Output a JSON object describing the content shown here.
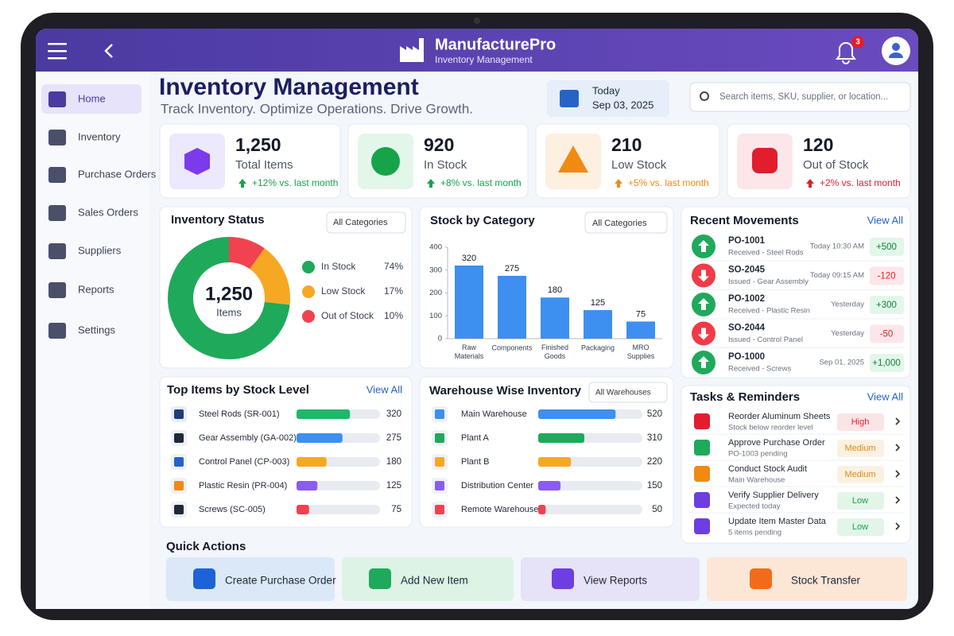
{
  "header": {
    "app_name": "ManufacturePro",
    "app_subtitle": "Inventory Management",
    "notification_count": 3
  },
  "sidebar": {
    "items": [
      "Home",
      "Inventory",
      "Purchase Orders",
      "Sales Orders",
      "Suppliers",
      "Reports",
      "Settings"
    ]
  },
  "page": {
    "title": "Inventory Management",
    "subtitle": "Track Inventory. Optimize Operations. Drive Growth.",
    "date_label": "Today",
    "date": "Sep 03, 2025",
    "search_placeholder": "Search items, SKU, supplier, or location..."
  },
  "kpis": [
    {
      "value": "1,250",
      "label": "Total Items",
      "change": "+12% vs. last month",
      "color": "#16a34a"
    },
    {
      "value": "920",
      "label": "In Stock",
      "change": "+8% vs. last month",
      "color": "#16a34a"
    },
    {
      "value": "210",
      "label": "Low Stock",
      "change": "+5% vs. last month",
      "color": "#f08a12"
    },
    {
      "value": "120",
      "label": "Out of Stock",
      "change": "+2% vs. last month",
      "color": "#e11d2e"
    }
  ],
  "inventory_status": {
    "title": "Inventory Status",
    "filter": "All Categories",
    "center_value": "1,250",
    "center_label": "Items",
    "chart": {
      "type": "donut",
      "categories": [
        "In Stock",
        "Low Stock",
        "Out of Stock"
      ],
      "values": [
        74,
        17,
        10
      ],
      "value_labels": [
        "74%",
        "17%",
        "10%"
      ],
      "colors": [
        "#1fa95b",
        "#f7a823",
        "#f2414f"
      ]
    }
  },
  "stock_by_category": {
    "title": "Stock by Category",
    "filter": "All Categories",
    "chart": {
      "type": "bar",
      "categories": [
        "Raw Materials",
        "Components",
        "Finished Goods",
        "Packaging",
        "MRO Supplies"
      ],
      "values": [
        320,
        275,
        180,
        125,
        75
      ],
      "ylim": [
        0,
        400
      ],
      "yticks": [
        0,
        100,
        200,
        300,
        400
      ],
      "color": "#3d8ff0"
    }
  },
  "recent_movements": {
    "title": "Recent Movements",
    "view_all": "View All",
    "items": [
      {
        "id": "PO-1001",
        "description": "Received - Steel Rods",
        "time": "Today 10:30 AM",
        "quantity": "+500",
        "direction": "in"
      },
      {
        "id": "SO-2045",
        "description": "Issued - Gear Assembly",
        "time": "Today 09:15 AM",
        "quantity": "-120",
        "direction": "out"
      },
      {
        "id": "PO-1002",
        "description": "Received - Plastic Resin",
        "time": "Yesterday",
        "quantity": "+300",
        "direction": "in"
      },
      {
        "id": "SO-2044",
        "description": "Issued - Control Panel",
        "time": "Yesterday",
        "quantity": "-50",
        "direction": "out"
      },
      {
        "id": "PO-1000",
        "description": "Received - Screws",
        "time": "Sep 01, 2025",
        "quantity": "+1,000",
        "direction": "in"
      }
    ]
  },
  "top_items": {
    "title": "Top Items by Stock Level",
    "view_all": "View All",
    "xlim": [
      0,
      500
    ],
    "items": [
      {
        "name": "Steel Rods (SR-001)",
        "value": 320,
        "color": "#1fb86a"
      },
      {
        "name": "Gear Assembly (GA-002)",
        "value": 275,
        "color": "#3d8ff0"
      },
      {
        "name": "Control Panel (CP-003)",
        "value": 180,
        "color": "#f7a823"
      },
      {
        "name": "Plastic Resin (PR-004)",
        "value": 125,
        "color": "#8a5cf0"
      },
      {
        "name": "Screws (SC-005)",
        "value": 75,
        "color": "#f2414f"
      }
    ]
  },
  "warehouses": {
    "title": "Warehouse Wise Inventory",
    "filter": "All Warehouses",
    "xlim": [
      0,
      700
    ],
    "items": [
      {
        "name": "Main Warehouse",
        "value": 520,
        "color": "#3d8ff0"
      },
      {
        "name": "Plant A",
        "value": 310,
        "color": "#1fa95b"
      },
      {
        "name": "Plant B",
        "value": 220,
        "color": "#f7a823"
      },
      {
        "name": "Distribution Center",
        "value": 150,
        "color": "#8a5cf0"
      },
      {
        "name": "Remote Warehouse",
        "value": 50,
        "color": "#f2414f"
      }
    ]
  },
  "tasks": {
    "title": "Tasks & Reminders",
    "view_all": "View All",
    "items": [
      {
        "title": "Reorder Aluminum Sheets",
        "detail": "Stock below reorder level",
        "priority": "High",
        "color": "#e11d2e"
      },
      {
        "title": "Approve Purchase Order",
        "detail": "PO-1003 pending",
        "priority": "Medium",
        "color": "#e08a12"
      },
      {
        "title": "Conduct Stock Audit",
        "detail": "Main Warehouse",
        "priority": "Medium",
        "color": "#e08a12"
      },
      {
        "title": "Verify Supplier Delivery",
        "detail": "Expected today",
        "priority": "Low",
        "color": "#16a34a"
      },
      {
        "title": "Update Item Master Data",
        "detail": "5 items pending",
        "priority": "Low",
        "color": "#16a34a"
      }
    ]
  },
  "quick_actions": {
    "title": "Quick Actions",
    "items": [
      "Create Purchase Order",
      "Add New Item",
      "View Reports",
      "Stock Transfer"
    ]
  }
}
